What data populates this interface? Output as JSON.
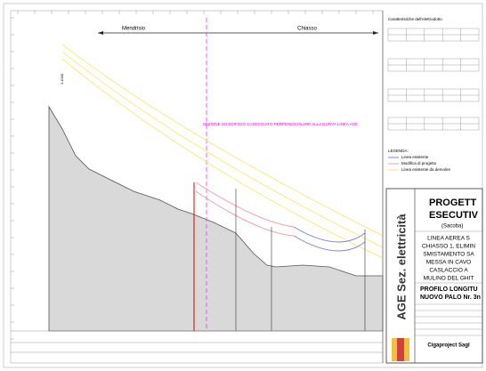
{
  "profile": {
    "direction_left": "Mendrisio",
    "direction_right": "Chiasso",
    "scale": "1:1000",
    "section_note": "SEZIONE SU EDIFICIO CASEGGIATO PERPENDICOLARE ALLA NUOVA LINEA AGE"
  },
  "panel": {
    "title": "Caratteristiche dell'elettrodotto"
  },
  "legend": {
    "title": "LEGENDA:",
    "items": [
      "Linea esistente",
      "Modifica di progetto",
      "Linea esistente da demolire"
    ]
  },
  "title_block": {
    "company": "AGE Sez. elettricità",
    "heading": [
      "PROGETT",
      "ESECUTIV",
      "(Sacoba)"
    ],
    "description": [
      "LINEA AEREA S",
      "CHIASSO 1, ELIMIN",
      "SMISTAMENTO SA",
      "MESSA IN CAVO",
      "CASLACCIO A",
      "MULINO DEL GHIT"
    ],
    "drawing": [
      "PROFILO LONGITU",
      "NUOVO PALO Nr. 3n"
    ],
    "firm": "Cigaproject Sagl"
  }
}
